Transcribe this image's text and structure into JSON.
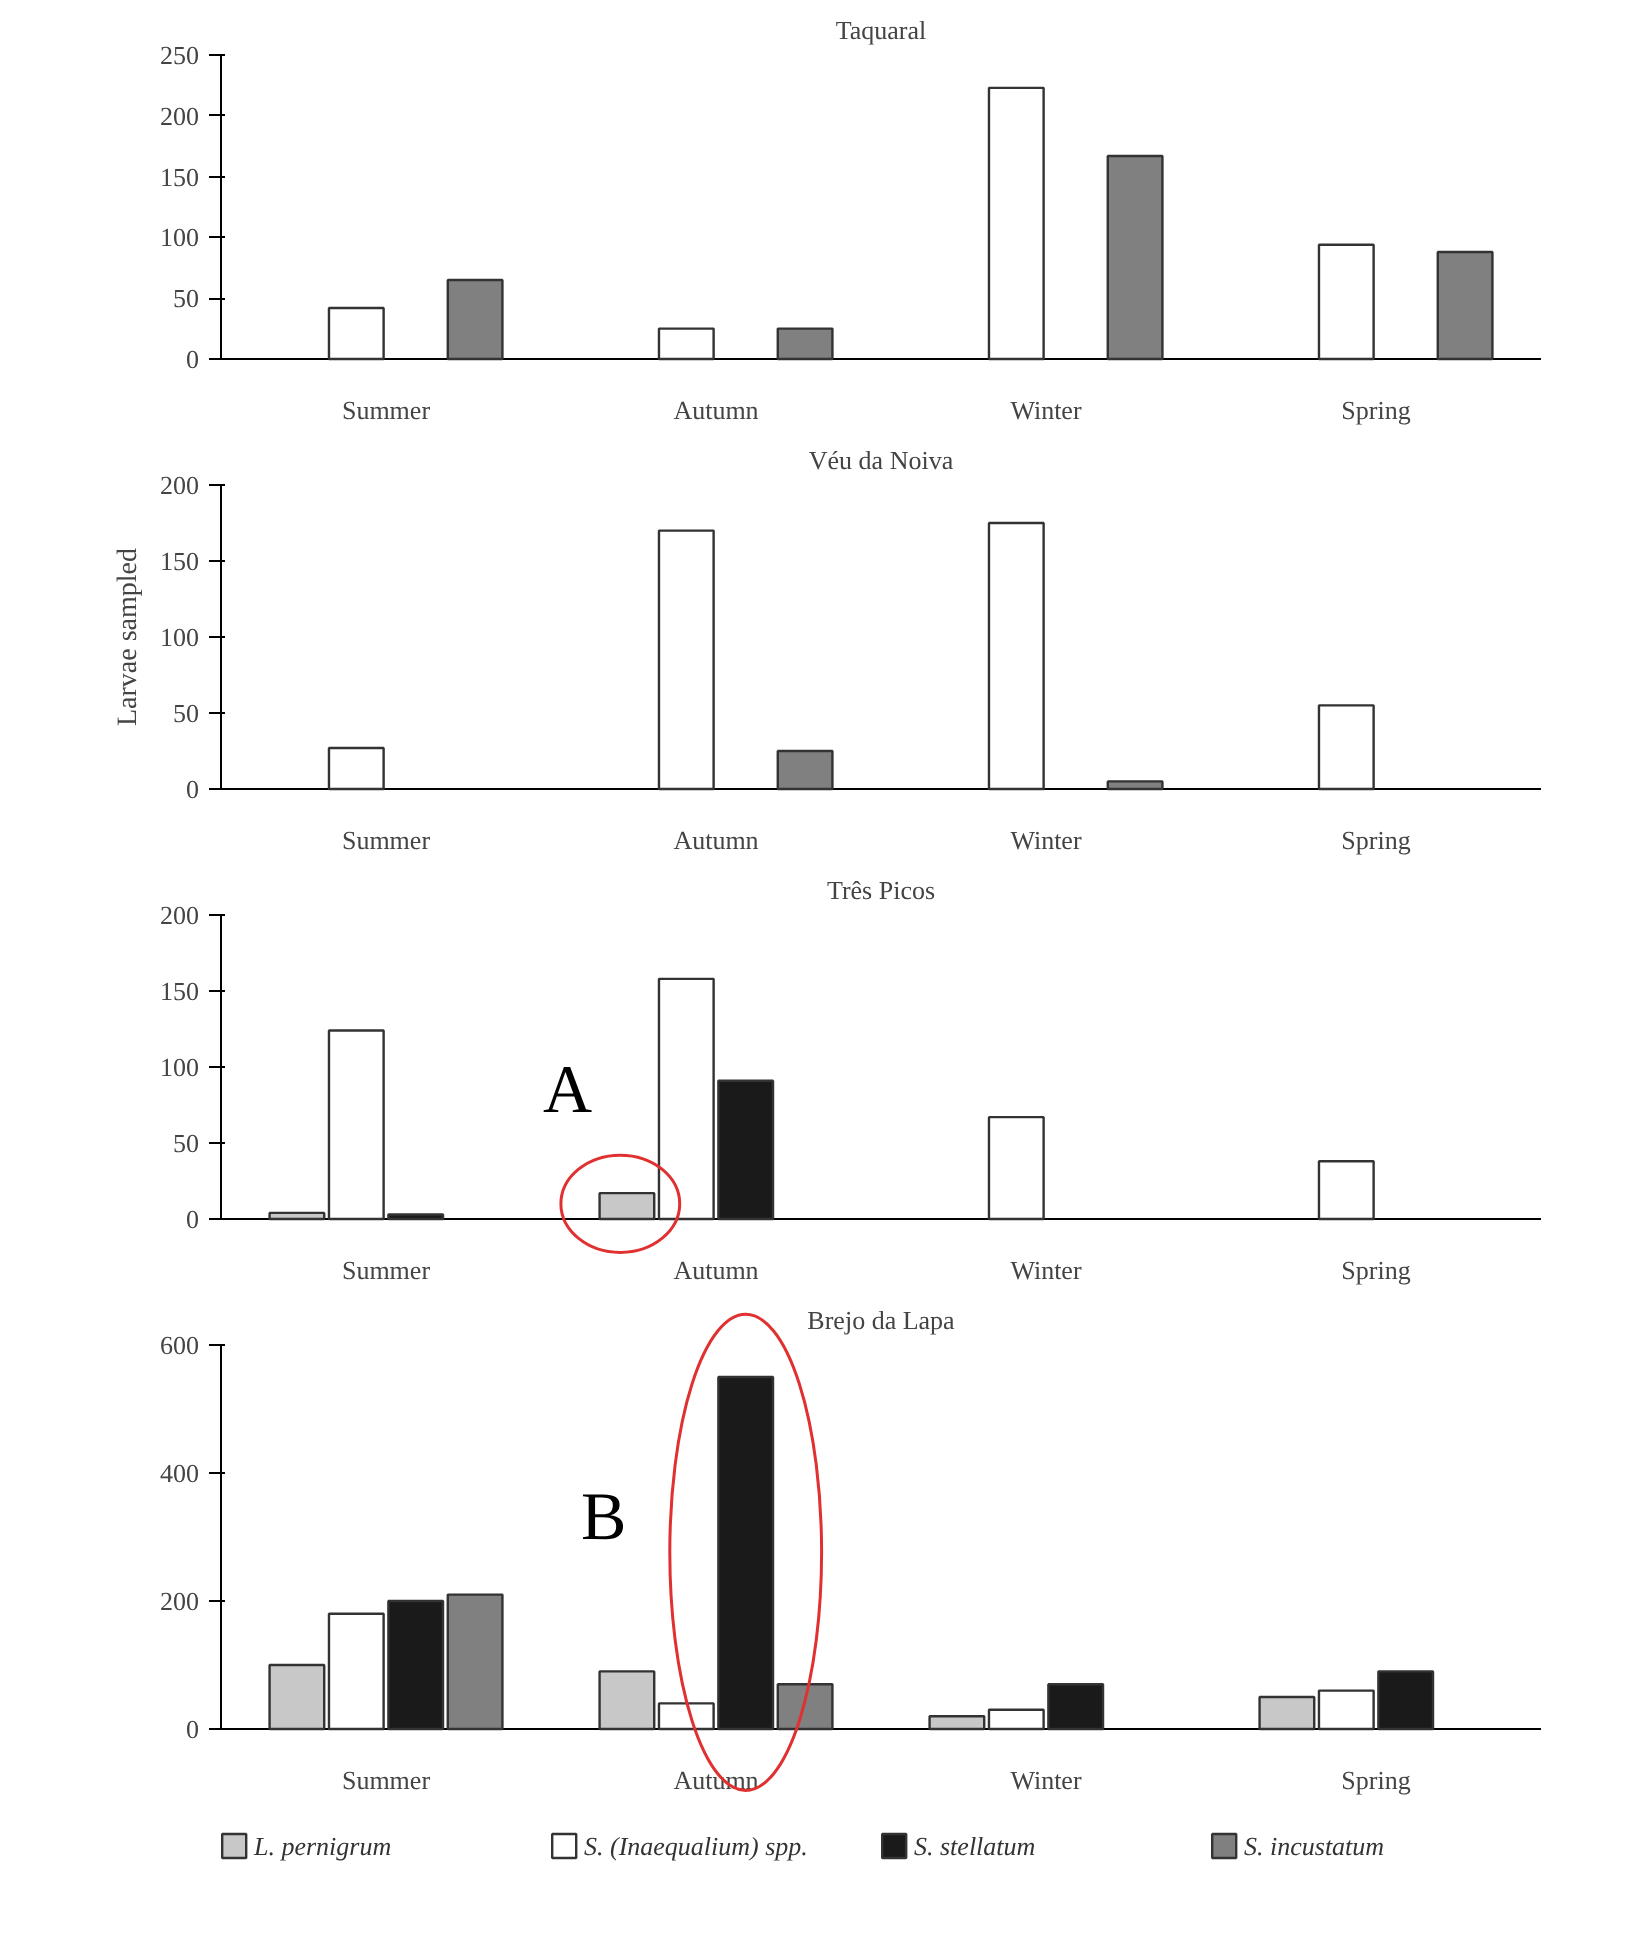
{
  "chart_data": [
    {
      "type": "bar",
      "title": "Taquaral",
      "categories": [
        "Summer",
        "Autumn",
        "Winter",
        "Spring"
      ],
      "ylim": [
        0,
        250
      ],
      "yticks": [
        0,
        50,
        100,
        150,
        200,
        250
      ],
      "grid": false,
      "legend": false,
      "series": [
        {
          "values": [
            null,
            null,
            null,
            null
          ]
        },
        {
          "color": "#ffffff",
          "values": [
            42,
            25,
            223,
            94
          ]
        },
        {
          "values": [
            null,
            null,
            null,
            null
          ]
        },
        {
          "color": "#808080",
          "values": [
            65,
            25,
            167,
            88
          ]
        }
      ]
    },
    {
      "type": "bar",
      "title": "Véu da Noiva",
      "ylabel": "Larvae sampled",
      "categories": [
        "Summer",
        "Autumn",
        "Winter",
        "Spring"
      ],
      "ylim": [
        0,
        200
      ],
      "yticks": [
        0,
        50,
        100,
        150,
        200
      ],
      "grid": false,
      "legend": false,
      "series": [
        {
          "values": [
            null,
            null,
            null,
            null
          ]
        },
        {
          "color": "#ffffff",
          "values": [
            27,
            170,
            175,
            55
          ]
        },
        {
          "values": [
            null,
            null,
            null,
            null
          ]
        },
        {
          "color": "#808080",
          "values": [
            null,
            25,
            5,
            null
          ]
        }
      ]
    },
    {
      "type": "bar",
      "title": "Três Picos",
      "categories": [
        "Summer",
        "Autumn",
        "Winter",
        "Spring"
      ],
      "ylim": [
        0,
        200
      ],
      "yticks": [
        0,
        50,
        100,
        150,
        200
      ],
      "grid": false,
      "legend": false,
      "annotations": [
        "A"
      ],
      "series": [
        {
          "color": "#c8c8c8",
          "values": [
            4,
            17,
            null,
            null
          ]
        },
        {
          "color": "#ffffff",
          "values": [
            124,
            158,
            67,
            38
          ]
        },
        {
          "color": "#1a1a1a",
          "values": [
            3,
            91,
            null,
            null
          ]
        },
        {
          "values": [
            null,
            null,
            null,
            null
          ]
        }
      ]
    },
    {
      "type": "bar",
      "title": "Brejo da Lapa",
      "categories": [
        "Summer",
        "Autumn",
        "Winter",
        "Spring"
      ],
      "ylim": [
        0,
        600
      ],
      "yticks": [
        0,
        200,
        400,
        600
      ],
      "grid": false,
      "legend": "bottom",
      "annotations": [
        "B"
      ],
      "series": [
        {
          "name": "L. pernigrum",
          "color": "#c8c8c8",
          "values": [
            100,
            90,
            20,
            50
          ]
        },
        {
          "name": "S. (Inaequalium) spp.",
          "color": "#ffffff",
          "values": [
            180,
            40,
            30,
            60
          ]
        },
        {
          "name": "S. stellatum",
          "color": "#1a1a1a",
          "values": [
            200,
            550,
            70,
            90
          ]
        },
        {
          "name": "S. incustatum",
          "color": "#808080",
          "values": [
            210,
            70,
            null,
            null
          ]
        }
      ]
    }
  ]
}
